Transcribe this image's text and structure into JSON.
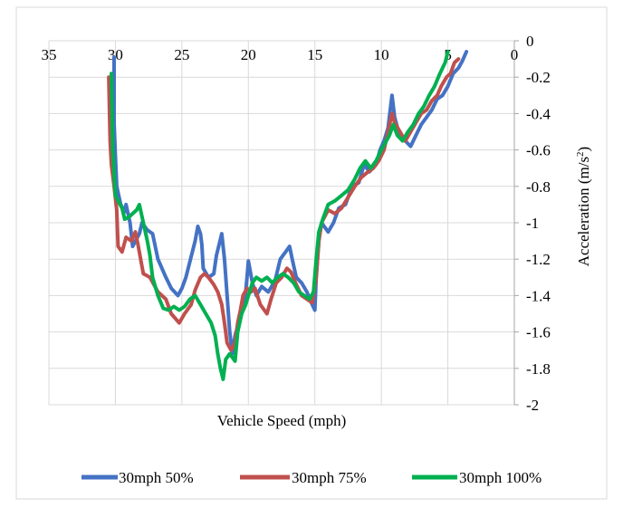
{
  "chart_data": {
    "type": "line",
    "xlabel": "Vehicle Speed (mph)",
    "ylabel": "Acceleration (m/s²)",
    "ylabel_main": "Acceleration (m/s",
    "ylabel_sup": "2",
    "ylabel_tail": ")",
    "xlim": [
      35,
      0
    ],
    "ylim": [
      -2,
      0
    ],
    "x_reversed": true,
    "x_ticks": [
      35,
      30,
      25,
      20,
      15,
      10,
      5,
      0
    ],
    "x_tick_labels": [
      "35",
      "30",
      "25",
      "20",
      "15",
      "10",
      "5",
      "0"
    ],
    "y_ticks": [
      0,
      -0.2,
      -0.4,
      -0.6,
      -0.8,
      -1,
      -1.2,
      -1.4,
      -1.6,
      -1.8,
      -2
    ],
    "y_tick_labels": [
      "0",
      "-0.2",
      "-0.4",
      "-0.6",
      "-0.8",
      "-1",
      "-1.2",
      "-1.4",
      "-1.6",
      "-1.8",
      "-2"
    ],
    "grid": true,
    "legend_position": "bottom",
    "series": [
      {
        "name": "30mph 50%",
        "color": "#4472C4",
        "points": [
          [
            30.1,
            -0.09
          ],
          [
            30.1,
            -0.45
          ],
          [
            30.0,
            -0.63
          ],
          [
            29.9,
            -0.8
          ],
          [
            29.6,
            -0.9
          ],
          [
            29.3,
            -0.94
          ],
          [
            29.2,
            -0.9
          ],
          [
            28.9,
            -1.0
          ],
          [
            28.7,
            -1.13
          ],
          [
            28.2,
            -1.06
          ],
          [
            28.0,
            -1.0
          ],
          [
            27.6,
            -1.04
          ],
          [
            27.2,
            -1.06
          ],
          [
            26.8,
            -1.2
          ],
          [
            26.2,
            -1.3
          ],
          [
            25.8,
            -1.36
          ],
          [
            25.3,
            -1.4
          ],
          [
            25.0,
            -1.36
          ],
          [
            24.7,
            -1.3
          ],
          [
            24.0,
            -1.1
          ],
          [
            23.8,
            -1.02
          ],
          [
            23.6,
            -1.06
          ],
          [
            23.5,
            -1.12
          ],
          [
            23.4,
            -1.25
          ],
          [
            23.0,
            -1.3
          ],
          [
            22.6,
            -1.28
          ],
          [
            22.4,
            -1.18
          ],
          [
            22.0,
            -1.06
          ],
          [
            21.8,
            -1.2
          ],
          [
            21.6,
            -1.4
          ],
          [
            21.4,
            -1.6
          ],
          [
            21.2,
            -1.72
          ],
          [
            21.0,
            -1.62
          ],
          [
            20.8,
            -1.57
          ],
          [
            20.6,
            -1.52
          ],
          [
            20.3,
            -1.45
          ],
          [
            20.1,
            -1.3
          ],
          [
            20.0,
            -1.21
          ],
          [
            19.7,
            -1.33
          ],
          [
            19.4,
            -1.4
          ],
          [
            19.0,
            -1.35
          ],
          [
            18.5,
            -1.38
          ],
          [
            18.0,
            -1.32
          ],
          [
            17.6,
            -1.2
          ],
          [
            17.2,
            -1.16
          ],
          [
            16.9,
            -1.13
          ],
          [
            16.7,
            -1.2
          ],
          [
            16.4,
            -1.3
          ],
          [
            16.0,
            -1.33
          ],
          [
            15.6,
            -1.38
          ],
          [
            15.2,
            -1.45
          ],
          [
            15.0,
            -1.48
          ],
          [
            14.9,
            -1.3
          ],
          [
            14.7,
            -1.1
          ],
          [
            14.5,
            -1.0
          ],
          [
            14.0,
            -1.05
          ],
          [
            13.6,
            -1.0
          ],
          [
            13.2,
            -0.92
          ],
          [
            12.7,
            -0.9
          ],
          [
            12.2,
            -0.8
          ],
          [
            11.7,
            -0.78
          ],
          [
            11.3,
            -0.68
          ],
          [
            10.9,
            -0.72
          ],
          [
            10.4,
            -0.68
          ],
          [
            10.1,
            -0.6
          ],
          [
            9.8,
            -0.55
          ],
          [
            9.5,
            -0.48
          ],
          [
            9.2,
            -0.3
          ],
          [
            9.0,
            -0.42
          ],
          [
            8.7,
            -0.5
          ],
          [
            8.2,
            -0.55
          ],
          [
            7.8,
            -0.58
          ],
          [
            7.4,
            -0.52
          ],
          [
            7.0,
            -0.46
          ],
          [
            6.6,
            -0.42
          ],
          [
            6.2,
            -0.38
          ],
          [
            5.8,
            -0.32
          ],
          [
            5.4,
            -0.3
          ],
          [
            5.0,
            -0.25
          ],
          [
            4.6,
            -0.18
          ],
          [
            4.2,
            -0.15
          ],
          [
            3.9,
            -0.11
          ],
          [
            3.6,
            -0.06
          ]
        ]
      },
      {
        "name": "30mph 75%",
        "color": "#C0504D",
        "points": [
          [
            30.5,
            -0.2
          ],
          [
            30.4,
            -0.55
          ],
          [
            30.3,
            -0.68
          ],
          [
            30.1,
            -0.8
          ],
          [
            29.9,
            -0.93
          ],
          [
            29.8,
            -1.13
          ],
          [
            29.5,
            -1.16
          ],
          [
            29.2,
            -1.08
          ],
          [
            28.8,
            -1.1
          ],
          [
            28.5,
            -1.05
          ],
          [
            28.3,
            -1.12
          ],
          [
            28.1,
            -1.2
          ],
          [
            27.9,
            -1.28
          ],
          [
            27.4,
            -1.3
          ],
          [
            26.8,
            -1.38
          ],
          [
            26.2,
            -1.42
          ],
          [
            25.8,
            -1.5
          ],
          [
            25.2,
            -1.55
          ],
          [
            24.8,
            -1.5
          ],
          [
            24.3,
            -1.45
          ],
          [
            24.0,
            -1.37
          ],
          [
            23.6,
            -1.3
          ],
          [
            23.3,
            -1.28
          ],
          [
            23.0,
            -1.3
          ],
          [
            22.6,
            -1.34
          ],
          [
            22.3,
            -1.38
          ],
          [
            22.0,
            -1.45
          ],
          [
            21.8,
            -1.55
          ],
          [
            21.6,
            -1.66
          ],
          [
            21.3,
            -1.7
          ],
          [
            21.0,
            -1.66
          ],
          [
            20.8,
            -1.55
          ],
          [
            20.6,
            -1.48
          ],
          [
            20.4,
            -1.4
          ],
          [
            20.1,
            -1.36
          ],
          [
            19.8,
            -1.38
          ],
          [
            19.5,
            -1.36
          ],
          [
            19.1,
            -1.45
          ],
          [
            18.6,
            -1.5
          ],
          [
            18.3,
            -1.42
          ],
          [
            17.9,
            -1.33
          ],
          [
            17.5,
            -1.3
          ],
          [
            17.1,
            -1.25
          ],
          [
            16.8,
            -1.27
          ],
          [
            16.4,
            -1.34
          ],
          [
            16.0,
            -1.4
          ],
          [
            15.6,
            -1.42
          ],
          [
            15.2,
            -1.44
          ],
          [
            14.9,
            -1.3
          ],
          [
            14.7,
            -1.1
          ],
          [
            14.5,
            -1.0
          ],
          [
            14.0,
            -0.93
          ],
          [
            13.5,
            -0.95
          ],
          [
            13.0,
            -0.92
          ],
          [
            12.5,
            -0.86
          ],
          [
            12.0,
            -0.8
          ],
          [
            11.5,
            -0.75
          ],
          [
            11.0,
            -0.72
          ],
          [
            10.6,
            -0.7
          ],
          [
            10.2,
            -0.66
          ],
          [
            9.8,
            -0.6
          ],
          [
            9.5,
            -0.5
          ],
          [
            9.2,
            -0.4
          ],
          [
            9.0,
            -0.45
          ],
          [
            8.6,
            -0.5
          ],
          [
            8.2,
            -0.55
          ],
          [
            7.8,
            -0.5
          ],
          [
            7.4,
            -0.45
          ],
          [
            7.0,
            -0.4
          ],
          [
            6.6,
            -0.38
          ],
          [
            6.2,
            -0.33
          ],
          [
            5.8,
            -0.3
          ],
          [
            5.5,
            -0.25
          ],
          [
            5.1,
            -0.2
          ],
          [
            4.8,
            -0.18
          ],
          [
            4.5,
            -0.12
          ],
          [
            4.2,
            -0.1
          ]
        ]
      },
      {
        "name": "30mph 100%",
        "color": "#00B050",
        "points": [
          [
            30.3,
            -0.18
          ],
          [
            30.2,
            -0.6
          ],
          [
            30.0,
            -0.85
          ],
          [
            29.8,
            -0.88
          ],
          [
            29.5,
            -0.92
          ],
          [
            29.3,
            -0.98
          ],
          [
            29.0,
            -0.97
          ],
          [
            28.7,
            -0.95
          ],
          [
            28.4,
            -0.93
          ],
          [
            28.2,
            -0.9
          ],
          [
            27.9,
            -1.0
          ],
          [
            27.6,
            -1.1
          ],
          [
            27.4,
            -1.18
          ],
          [
            27.2,
            -1.3
          ],
          [
            26.8,
            -1.4
          ],
          [
            26.4,
            -1.47
          ],
          [
            26.0,
            -1.48
          ],
          [
            25.6,
            -1.46
          ],
          [
            25.2,
            -1.48
          ],
          [
            24.8,
            -1.46
          ],
          [
            24.4,
            -1.42
          ],
          [
            24.0,
            -1.4
          ],
          [
            23.6,
            -1.45
          ],
          [
            23.2,
            -1.5
          ],
          [
            22.8,
            -1.55
          ],
          [
            22.5,
            -1.62
          ],
          [
            22.3,
            -1.72
          ],
          [
            22.1,
            -1.8
          ],
          [
            21.9,
            -1.86
          ],
          [
            21.7,
            -1.75
          ],
          [
            21.4,
            -1.72
          ],
          [
            21.0,
            -1.76
          ],
          [
            20.8,
            -1.6
          ],
          [
            20.5,
            -1.5
          ],
          [
            20.2,
            -1.45
          ],
          [
            20.0,
            -1.4
          ],
          [
            19.7,
            -1.33
          ],
          [
            19.4,
            -1.3
          ],
          [
            19.0,
            -1.32
          ],
          [
            18.6,
            -1.3
          ],
          [
            18.2,
            -1.33
          ],
          [
            17.8,
            -1.3
          ],
          [
            17.4,
            -1.28
          ],
          [
            17.0,
            -1.3
          ],
          [
            16.6,
            -1.33
          ],
          [
            16.2,
            -1.38
          ],
          [
            15.8,
            -1.4
          ],
          [
            15.4,
            -1.42
          ],
          [
            15.1,
            -1.38
          ],
          [
            14.9,
            -1.2
          ],
          [
            14.7,
            -1.05
          ],
          [
            14.4,
            -0.98
          ],
          [
            14.0,
            -0.9
          ],
          [
            13.5,
            -0.88
          ],
          [
            13.0,
            -0.85
          ],
          [
            12.5,
            -0.82
          ],
          [
            12.0,
            -0.76
          ],
          [
            11.6,
            -0.7
          ],
          [
            11.2,
            -0.66
          ],
          [
            10.8,
            -0.7
          ],
          [
            10.4,
            -0.66
          ],
          [
            10.0,
            -0.6
          ],
          [
            9.7,
            -0.56
          ],
          [
            9.4,
            -0.52
          ],
          [
            9.1,
            -0.46
          ],
          [
            8.8,
            -0.52
          ],
          [
            8.4,
            -0.55
          ],
          [
            8.0,
            -0.5
          ],
          [
            7.6,
            -0.46
          ],
          [
            7.2,
            -0.4
          ],
          [
            6.8,
            -0.36
          ],
          [
            6.4,
            -0.3
          ],
          [
            6.0,
            -0.25
          ],
          [
            5.6,
            -0.18
          ],
          [
            5.2,
            -0.12
          ],
          [
            5.0,
            -0.06
          ]
        ]
      }
    ]
  }
}
